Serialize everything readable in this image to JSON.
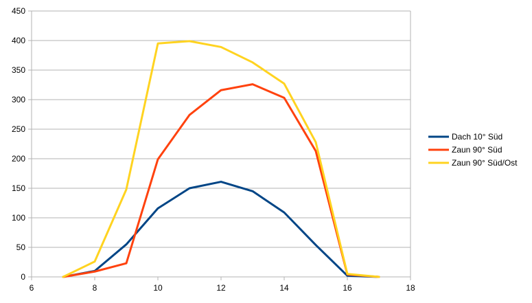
{
  "chart_data": {
    "type": "line",
    "title": "",
    "xlabel": "",
    "ylabel": "",
    "xlim": [
      6,
      18
    ],
    "ylim": [
      0,
      450
    ],
    "xticks": [
      6,
      8,
      10,
      12,
      14,
      16,
      18
    ],
    "yticks": [
      0,
      50,
      100,
      150,
      200,
      250,
      300,
      350,
      400,
      450
    ],
    "grid": "horizontal",
    "legend_position": "right",
    "series": [
      {
        "name": "Dach 10° Süd",
        "color": "#004586",
        "x": [
          7,
          8,
          9,
          10,
          11,
          12,
          13,
          14,
          15,
          16,
          17
        ],
        "values": [
          0,
          10,
          55,
          116,
          150,
          161,
          145,
          109,
          54,
          2,
          0
        ]
      },
      {
        "name": "Zaun 90° Süd",
        "color": "#ff420e",
        "x": [
          7,
          8,
          9,
          10,
          11,
          12,
          13,
          14,
          15,
          16,
          17
        ],
        "values": [
          0,
          9,
          23,
          199,
          274,
          316,
          326,
          303,
          213,
          4,
          0
        ]
      },
      {
        "name": "Zaun 90° Süd/Ost",
        "color": "#ffd320",
        "x": [
          7,
          8,
          9,
          10,
          11,
          12,
          13,
          14,
          15,
          16,
          17
        ],
        "values": [
          0,
          26,
          148,
          395,
          399,
          389,
          363,
          327,
          228,
          5,
          0
        ]
      }
    ]
  }
}
